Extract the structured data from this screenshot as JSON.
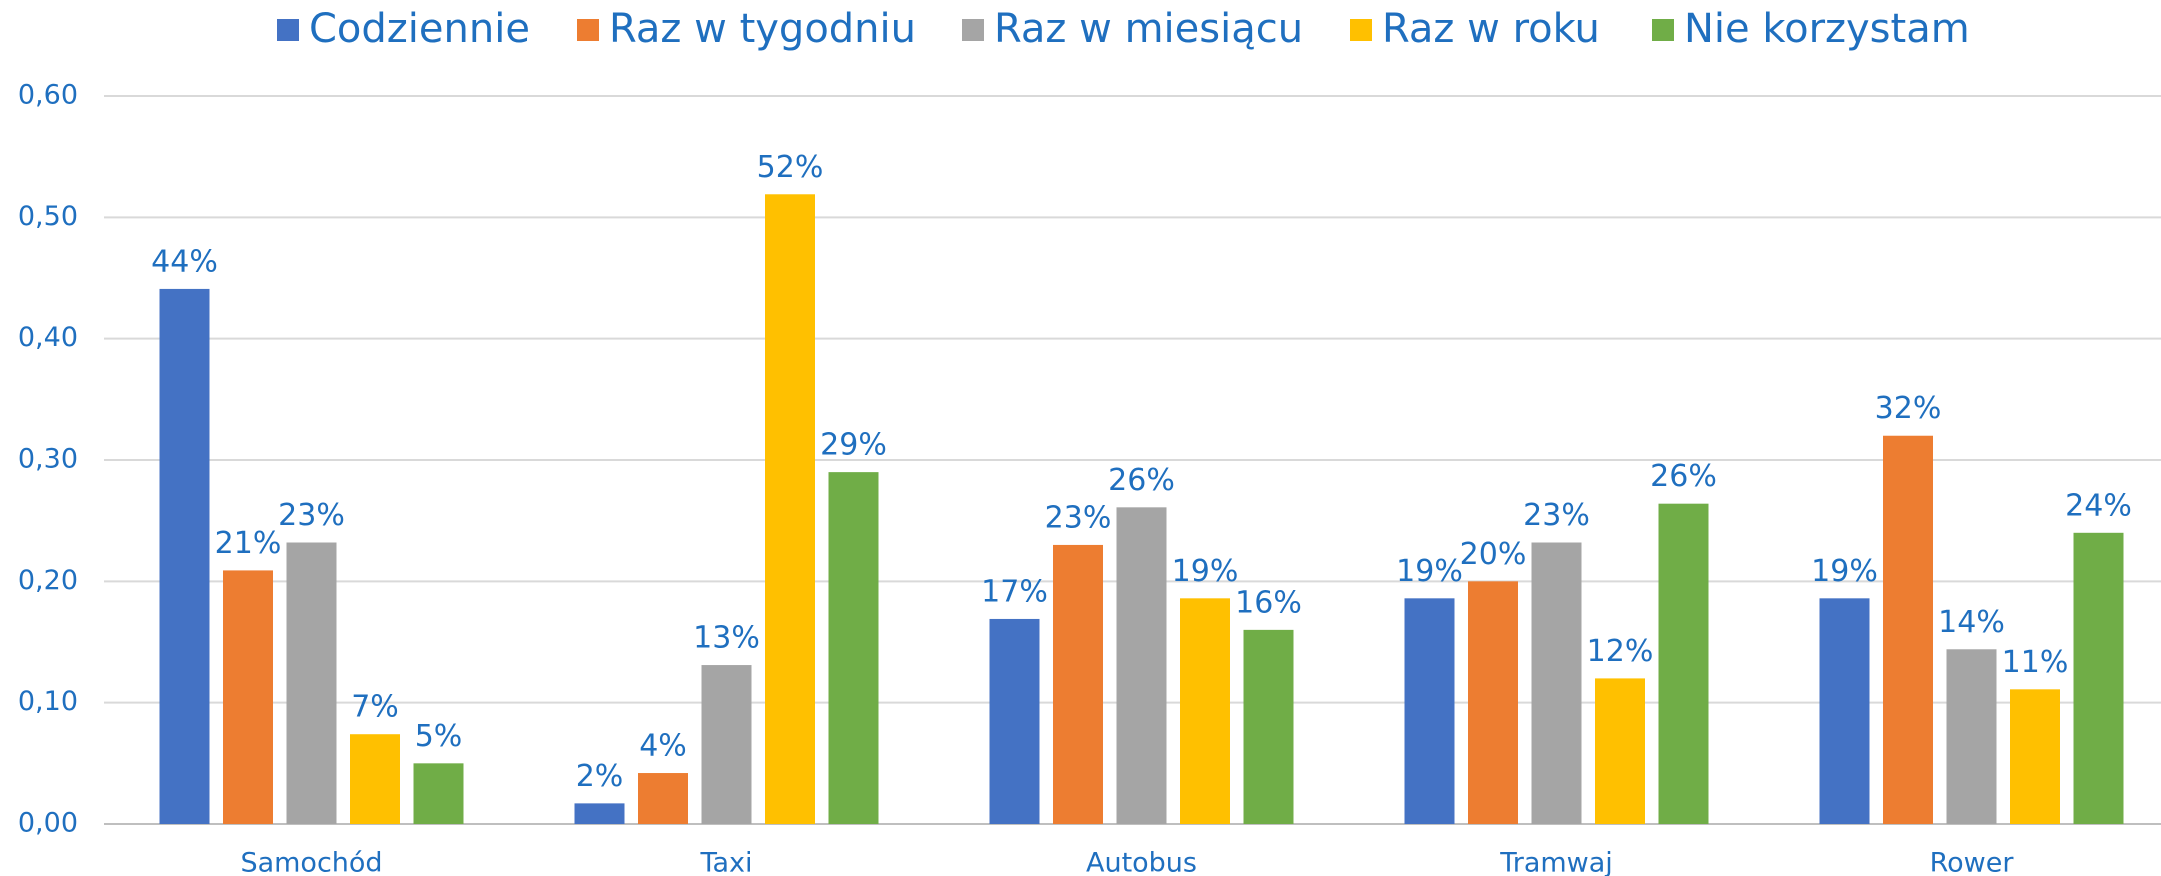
{
  "chart_data": {
    "type": "bar",
    "categories": [
      "Samochód",
      "Taxi",
      "Autobus",
      "Tramwaj",
      "Rower"
    ],
    "series": [
      {
        "name": "Codziennie",
        "color": "#4472c4",
        "values": [
          0.441,
          0.017,
          0.169,
          0.186,
          0.186
        ],
        "value_labels": [
          "44%",
          "2%",
          "17%",
          "19%",
          "19%"
        ]
      },
      {
        "name": "Raz w tygodniu",
        "color": "#ed7d31",
        "values": [
          0.209,
          0.042,
          0.23,
          0.2,
          0.32
        ],
        "value_labels": [
          "21%",
          "4%",
          "23%",
          "20%",
          "32%"
        ]
      },
      {
        "name": "Raz w miesiącu",
        "color": "#a5a5a5",
        "values": [
          0.232,
          0.131,
          0.261,
          0.232,
          0.144
        ],
        "value_labels": [
          "23%",
          "13%",
          "26%",
          "23%",
          "14%"
        ]
      },
      {
        "name": "Raz w roku",
        "color": "#ffc000",
        "values": [
          0.074,
          0.519,
          0.186,
          0.12,
          0.111
        ],
        "value_labels": [
          "7%",
          "52%",
          "19%",
          "12%",
          "11%"
        ]
      },
      {
        "name": "Nie korzystam",
        "color": "#70ad47",
        "values": [
          0.05,
          0.29,
          0.16,
          0.264,
          0.24
        ],
        "value_labels": [
          "5%",
          "29%",
          "16%",
          "26%",
          "24%"
        ]
      }
    ],
    "ylim": [
      0,
      0.6
    ],
    "yticks": [
      {
        "value": 0,
        "label": "0,00"
      },
      {
        "value": 0.1,
        "label": "0,10"
      },
      {
        "value": 0.2,
        "label": "0,20"
      },
      {
        "value": 0.3,
        "label": "0,30"
      },
      {
        "value": 0.4,
        "label": "0,40"
      },
      {
        "value": 0.5,
        "label": "0,50"
      },
      {
        "value": 0.6,
        "label": "0,60"
      }
    ],
    "grid": true,
    "legend": "top"
  }
}
